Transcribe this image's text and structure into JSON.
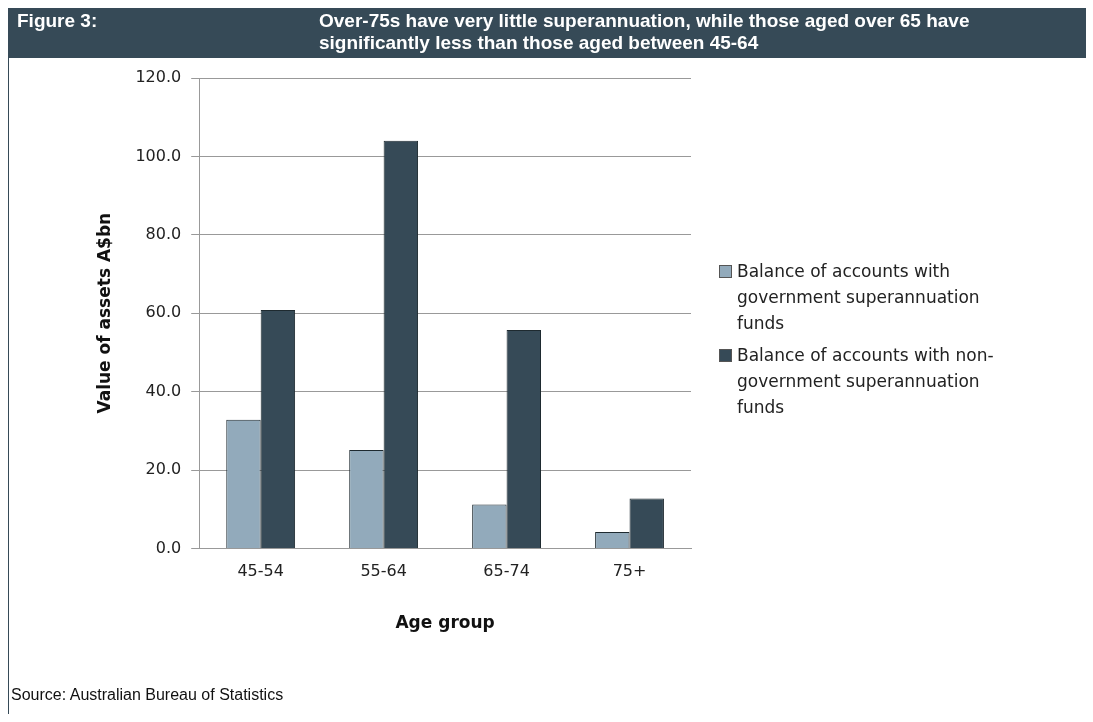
{
  "chart_data": {
    "type": "bar",
    "title": "Over-75s have very little superannuation, while those aged over 65 have significantly less than those aged between 45-64",
    "annotations": [
      "Figure 3:",
      "Source:  Australian Bureau of Statistics"
    ],
    "xlabel": "Age group",
    "ylabel": "Value of assets A$bn",
    "categories": [
      "45-54",
      "55-64",
      "65-74",
      "75+"
    ],
    "series": [
      {
        "name": "Balance of accounts with government superannuation funds",
        "color": "#92aabb",
        "values": [
          32.8,
          25.1,
          11.2,
          4.2
        ]
      },
      {
        "name": "Balance of accounts with non-government superannuation funds",
        "color": "#364a57",
        "values": [
          60.8,
          104.0,
          55.7,
          12.7
        ]
      }
    ],
    "ylim": [
      0,
      120
    ],
    "yticks": [
      {
        "value": 0,
        "label": "0.0"
      },
      {
        "value": 20,
        "label": "20.0"
      },
      {
        "value": 40,
        "label": "40.0"
      },
      {
        "value": 60,
        "label": "60.0"
      },
      {
        "value": 80,
        "label": "80.0"
      },
      {
        "value": 100,
        "label": "100.0"
      },
      {
        "value": 120,
        "label": "120.0"
      }
    ],
    "grid": "y",
    "legend": "right"
  }
}
